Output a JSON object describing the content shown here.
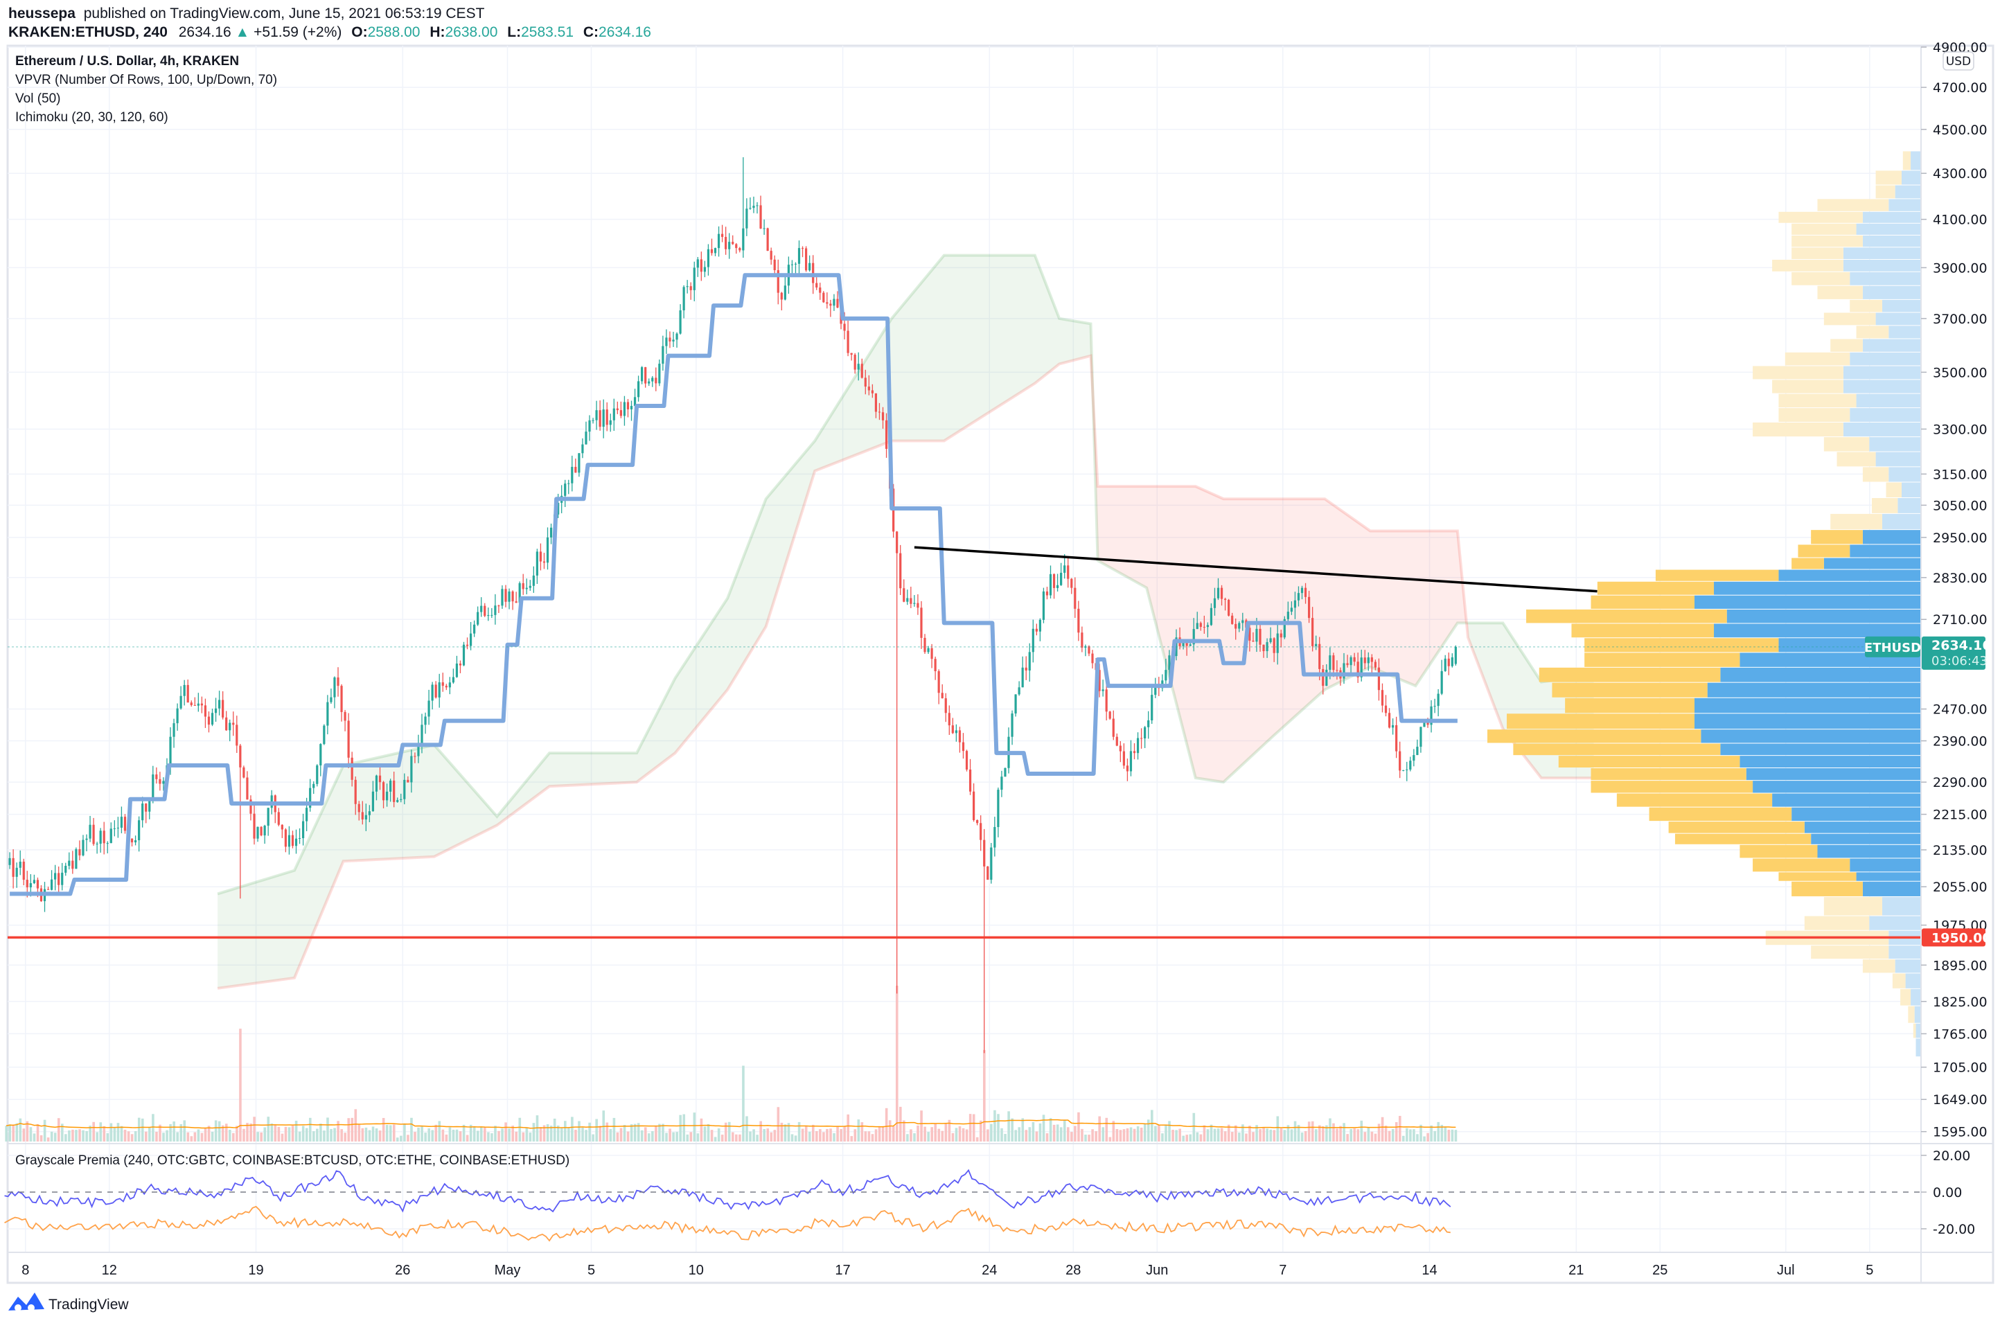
{
  "header": {
    "author": "heussepa",
    "published_text": "published on TradingView.com, June 15, 2021 06:53:19 CEST",
    "symbol_interval": "KRAKEN:ETHUSD, 240",
    "last_price": "2634.16",
    "change": "+51.59 (+2%)",
    "open_label": "O:",
    "open": "2588.00",
    "high_label": "H:",
    "high": "2638.00",
    "low_label": "L:",
    "low": "2583.51",
    "close_label": "C:",
    "close": "2634.16"
  },
  "legend": {
    "title": "Ethereum / U.S. Dollar, 4h, KRAKEN",
    "vpvr": "VPVR (Number Of Rows, 100, Up/Down, 70)",
    "vol": "Vol (50)",
    "ichimoku": "Ichimoku (20, 30, 120, 60)",
    "premia": "Grayscale Premia (240, OTC:GBTC, COINBASE:BTCUSD, OTC:ETHE, COINBASE:ETHUSD)"
  },
  "price_axis": {
    "currency": "USD",
    "scale": "log",
    "ticks": [
      4900,
      4700,
      4500,
      4300,
      4100,
      3900,
      3700,
      3500,
      3300,
      3150,
      3050,
      2950,
      2830,
      2710,
      2470,
      2390,
      2290,
      2215,
      2135,
      2055,
      1975,
      1895,
      1825,
      1765,
      1705,
      1649,
      1595
    ],
    "tick_labels": [
      "4900.00",
      "4700.00",
      "4500.00",
      "4300.00",
      "4100.00",
      "3900.00",
      "3700.00",
      "3500.00",
      "3300.00",
      "3150.00",
      "3050.00",
      "2950.00",
      "2830.00",
      "2710.00",
      "2470.00",
      "2390.00",
      "2290.00",
      "2215.00",
      "2135.00",
      "2055.00",
      "1975.00",
      "1895.00",
      "1825.00",
      "1765.00",
      "1705.00",
      "1649.00",
      "1595.00"
    ],
    "current_symbol": "ETHUSD",
    "current_price": "2634.16",
    "countdown": "03:06:43",
    "alert_price": "1950.00"
  },
  "premia_axis": {
    "ticks": [
      20,
      0,
      -20
    ],
    "tick_labels": [
      "20.00",
      "0.00",
      "-20.00"
    ]
  },
  "time_axis": {
    "labels": [
      "8",
      "12",
      "19",
      "26",
      "May",
      "5",
      "10",
      "17",
      "24",
      "28",
      "Jun",
      "7",
      "14",
      "21",
      "25",
      "Jul",
      "5"
    ],
    "dates": [
      "2021-04-08",
      "2021-04-12",
      "2021-04-19",
      "2021-04-26",
      "2021-05-01",
      "2021-05-05",
      "2021-05-10",
      "2021-05-17",
      "2021-05-24",
      "2021-05-28",
      "2021-06-01",
      "2021-06-07",
      "2021-06-14",
      "2021-06-21",
      "2021-06-25",
      "2021-07-01",
      "2021-07-05"
    ]
  },
  "footer": {
    "brand": "TradingView"
  },
  "colors": {
    "up": "#26a69a",
    "down": "#ef5350",
    "vol_up": "#bfe3dc",
    "vol_down": "#f9c3c3",
    "vol_ma": "#ff9800",
    "kijun": "#7ea8de",
    "cloud_green": "#43a047",
    "cloud_red": "#f44336",
    "vpvr_up": "#5aace9",
    "vpvr_down": "#fdd16a",
    "vpvr_up_light": "#c7e2f7",
    "vpvr_down_light": "#fdeecb",
    "trendline": "#000000",
    "support": "#f44336",
    "premia_gbtc": "#5b5bf5",
    "premia_ethe": "#ffa24a"
  },
  "chart_data": {
    "type": "candlestick",
    "interval": "4h",
    "y_scale": "log",
    "ylim": [
      1595,
      4900
    ],
    "xlim": [
      "2021-04-07",
      "2021-07-08"
    ],
    "grid": true,
    "daily_close": [
      [
        "2021-04-07",
        2070
      ],
      [
        "2021-04-08",
        2050
      ],
      [
        "2021-04-09",
        2100
      ],
      [
        "2021-04-10",
        2160
      ],
      [
        "2021-04-11",
        2150
      ],
      [
        "2021-04-12",
        2160
      ],
      [
        "2021-04-13",
        2250
      ],
      [
        "2021-04-14",
        2400
      ],
      [
        "2021-04-15",
        2480
      ],
      [
        "2021-04-16",
        2460
      ],
      [
        "2021-04-17",
        2430
      ],
      [
        "2021-04-18",
        2160
      ],
      [
        "2021-04-19",
        2220
      ],
      [
        "2021-04-20",
        2160
      ],
      [
        "2021-04-21",
        2330
      ],
      [
        "2021-04-22",
        2530
      ],
      [
        "2021-04-23",
        2220
      ],
      [
        "2021-04-24",
        2290
      ],
      [
        "2021-04-25",
        2250
      ],
      [
        "2021-04-26",
        2430
      ],
      [
        "2021-04-27",
        2530
      ],
      [
        "2021-04-28",
        2640
      ],
      [
        "2021-04-29",
        2720
      ],
      [
        "2021-04-30",
        2760
      ],
      [
        "2021-05-01",
        2800
      ],
      [
        "2021-05-02",
        2950
      ],
      [
        "2021-05-03",
        3120
      ],
      [
        "2021-05-04",
        3330
      ],
      [
        "2021-05-05",
        3330
      ],
      [
        "2021-05-06",
        3380
      ],
      [
        "2021-05-07",
        3480
      ],
      [
        "2021-05-08",
        3620
      ],
      [
        "2021-05-09",
        3900
      ],
      [
        "2021-05-10",
        3980
      ],
      [
        "2021-05-11",
        3980
      ],
      [
        "2021-05-12",
        4160
      ],
      [
        "2021-05-13",
        3800
      ],
      [
        "2021-05-14",
        3980
      ],
      [
        "2021-05-15",
        3800
      ],
      [
        "2021-05-16",
        3680
      ],
      [
        "2021-05-17",
        3480
      ],
      [
        "2021-05-18",
        3330
      ],
      [
        "2021-05-19",
        2760
      ],
      [
        "2021-05-20",
        2620
      ],
      [
        "2021-05-21",
        2460
      ],
      [
        "2021-05-22",
        2320
      ],
      [
        "2021-05-23",
        2070
      ],
      [
        "2021-05-24",
        2400
      ],
      [
        "2021-05-25",
        2620
      ],
      [
        "2021-05-26",
        2840
      ],
      [
        "2021-05-27",
        2800
      ],
      [
        "2021-05-28",
        2590
      ],
      [
        "2021-05-29",
        2400
      ],
      [
        "2021-05-30",
        2360
      ],
      [
        "2021-05-31",
        2530
      ],
      [
        "2021-06-01",
        2660
      ],
      [
        "2021-06-02",
        2700
      ],
      [
        "2021-06-03",
        2800
      ],
      [
        "2021-06-04",
        2700
      ],
      [
        "2021-06-05",
        2640
      ],
      [
        "2021-06-06",
        2660
      ],
      [
        "2021-06-07",
        2800
      ],
      [
        "2021-06-08",
        2530
      ],
      [
        "2021-06-09",
        2590
      ],
      [
        "2021-06-10",
        2590
      ],
      [
        "2021-06-11",
        2460
      ],
      [
        "2021-06-12",
        2320
      ],
      [
        "2021-06-13",
        2430
      ],
      [
        "2021-06-14",
        2582
      ],
      [
        "2021-06-15",
        2634.16
      ]
    ],
    "extremes": [
      {
        "date": "2021-04-18T04:00",
        "low": 2030
      },
      {
        "date": "2021-05-12T04:00",
        "high": 4372
      },
      {
        "date": "2021-05-19T12:00",
        "low": 1840
      },
      {
        "date": "2021-05-23T16:00",
        "low": 1730
      }
    ],
    "ichimoku_base_line": [
      [
        "2021-04-07T06:00",
        2040
      ],
      [
        "2021-04-10T08:00",
        2070
      ],
      [
        "2021-04-13T00:00",
        2250
      ],
      [
        "2021-04-14T20:00",
        2330
      ],
      [
        "2021-04-17T20:00",
        2240
      ],
      [
        "2021-04-22T08:00",
        2330
      ],
      [
        "2021-04-26T00:00",
        2380
      ],
      [
        "2021-04-28T00:00",
        2440
      ],
      [
        "2021-05-01T00:00",
        2640
      ],
      [
        "2021-05-01T16:00",
        2770
      ],
      [
        "2021-05-03T08:00",
        3070
      ],
      [
        "2021-05-04T20:00",
        3180
      ],
      [
        "2021-05-07T04:00",
        3380
      ],
      [
        "2021-05-08T16:00",
        3560
      ],
      [
        "2021-05-10T20:00",
        3750
      ],
      [
        "2021-05-12T08:00",
        3870
      ],
      [
        "2021-05-17T00:00",
        3700
      ],
      [
        "2021-05-19T08:00",
        3040
      ],
      [
        "2021-05-21T20:00",
        2700
      ],
      [
        "2021-05-24T08:00",
        2360
      ],
      [
        "2021-05-25T20:00",
        2310
      ],
      [
        "2021-05-29T04:00",
        2600
      ],
      [
        "2021-05-29T16:00",
        2530
      ],
      [
        "2021-06-01T20:00",
        2650
      ],
      [
        "2021-06-04T04:00",
        2590
      ],
      [
        "2021-06-05T08:00",
        2700
      ],
      [
        "2021-06-08T00:00",
        2560
      ],
      [
        "2021-06-12T16:00",
        2440
      ],
      [
        "2021-06-15T08:00",
        2440
      ]
    ],
    "ichimoku_cloud": [
      [
        "2021-04-17T04:00",
        2040,
        1850
      ],
      [
        "2021-04-20T20:00",
        2090,
        1870
      ],
      [
        "2021-04-23T04:00",
        2330,
        2110
      ],
      [
        "2021-04-27T12:00",
        2380,
        2120
      ],
      [
        "2021-04-30T12:00",
        2210,
        2190
      ],
      [
        "2021-05-03T00:00",
        2360,
        2280
      ],
      [
        "2021-05-07T04:00",
        2360,
        2290
      ],
      [
        "2021-05-09T00:00",
        2550,
        2360
      ],
      [
        "2021-05-11T12:00",
        2770,
        2520
      ],
      [
        "2021-05-13T08:00",
        3070,
        2690
      ],
      [
        "2021-05-15T16:00",
        3260,
        3160
      ],
      [
        "2021-05-19T08:00",
        3700,
        3260
      ],
      [
        "2021-05-21T20:00",
        3950,
        3260
      ],
      [
        "2021-05-26T04:00",
        3950,
        3460
      ],
      [
        "2021-05-27T08:00",
        3700,
        3530
      ],
      [
        "2021-05-28T20:00",
        3680,
        3560
      ],
      [
        "2021-05-29T04:00",
        2880,
        3110
      ],
      [
        "2021-05-31T12:00",
        2800,
        3110
      ],
      [
        "2021-06-02T20:00",
        2300,
        3110
      ],
      [
        "2021-06-04T04:00",
        2290,
        3070
      ],
      [
        "2021-06-06T12:00",
        2400,
        3070
      ],
      [
        "2021-06-09T00:00",
        2520,
        3070
      ],
      [
        "2021-06-11T04:00",
        2580,
        2970
      ],
      [
        "2021-06-13T08:00",
        2530,
        2970
      ],
      [
        "2021-06-15T08:00",
        2700,
        2970
      ],
      [
        "2021-06-15T20:00",
        2700,
        2660
      ],
      [
        "2021-06-17T12:00",
        2700,
        2420
      ],
      [
        "2021-06-19T08:00",
        2540,
        2300
      ],
      [
        "2021-06-21T20:00",
        2560,
        2300
      ]
    ],
    "trendline": [
      [
        "2021-05-20T10:00",
        2920
      ],
      [
        "2021-06-22T00:00",
        2790
      ]
    ],
    "horizontal_line": 1950,
    "vpvr_value_area": [
      2055,
      2955
    ],
    "vpvr_rows": [
      [
        4350,
        8,
        6
      ],
      [
        4280,
        15,
        20
      ],
      [
        4220,
        20,
        15
      ],
      [
        4160,
        25,
        55
      ],
      [
        4110,
        45,
        65
      ],
      [
        4060,
        50,
        50
      ],
      [
        4010,
        45,
        55
      ],
      [
        3960,
        60,
        40
      ],
      [
        3910,
        60,
        55
      ],
      [
        3860,
        55,
        45
      ],
      [
        3800,
        45,
        35
      ],
      [
        3750,
        30,
        25
      ],
      [
        3700,
        35,
        40
      ],
      [
        3650,
        25,
        25
      ],
      [
        3600,
        45,
        25
      ],
      [
        3550,
        55,
        50
      ],
      [
        3500,
        60,
        70
      ],
      [
        3450,
        60,
        55
      ],
      [
        3400,
        50,
        60
      ],
      [
        3350,
        55,
        55
      ],
      [
        3300,
        60,
        70
      ],
      [
        3250,
        40,
        35
      ],
      [
        3200,
        35,
        30
      ],
      [
        3150,
        25,
        20
      ],
      [
        3100,
        15,
        12
      ],
      [
        3050,
        18,
        20
      ],
      [
        3000,
        30,
        40
      ],
      [
        2950,
        45,
        40
      ],
      [
        2910,
        55,
        40
      ],
      [
        2870,
        75,
        25
      ],
      [
        2840,
        110,
        95
      ],
      [
        2800,
        160,
        90
      ],
      [
        2760,
        175,
        80
      ],
      [
        2720,
        150,
        155
      ],
      [
        2680,
        160,
        110
      ],
      [
        2640,
        110,
        150
      ],
      [
        2600,
        140,
        120
      ],
      [
        2560,
        155,
        140
      ],
      [
        2520,
        165,
        120
      ],
      [
        2480,
        175,
        100
      ],
      [
        2440,
        175,
        145
      ],
      [
        2400,
        170,
        165
      ],
      [
        2370,
        155,
        160
      ],
      [
        2340,
        140,
        140
      ],
      [
        2310,
        135,
        120
      ],
      [
        2280,
        130,
        125
      ],
      [
        2250,
        115,
        120
      ],
      [
        2215,
        100,
        110
      ],
      [
        2185,
        90,
        105
      ],
      [
        2160,
        85,
        105
      ],
      [
        2135,
        80,
        60
      ],
      [
        2100,
        55,
        75
      ],
      [
        2075,
        50,
        60
      ],
      [
        2060,
        45,
        55
      ],
      [
        2010,
        30,
        45
      ],
      [
        1980,
        40,
        50
      ],
      [
        1950,
        25,
        95
      ],
      [
        1920,
        25,
        60
      ],
      [
        1895,
        20,
        25
      ],
      [
        1865,
        12,
        10
      ],
      [
        1835,
        8,
        8
      ],
      [
        1800,
        5,
        5
      ],
      [
        1770,
        4,
        2
      ],
      [
        1745,
        4,
        0
      ]
    ],
    "premia": {
      "GBTC": [
        [
          "2021-04-07",
          -1
        ],
        [
          "2021-04-09",
          -5
        ],
        [
          "2021-04-12",
          -6
        ],
        [
          "2021-04-14",
          2
        ],
        [
          "2021-04-17",
          -2
        ],
        [
          "2021-04-19",
          8
        ],
        [
          "2021-04-20",
          -3
        ],
        [
          "2021-04-23",
          10
        ],
        [
          "2021-04-24",
          -2
        ],
        [
          "2021-04-26",
          -8
        ],
        [
          "2021-04-28",
          3
        ],
        [
          "2021-04-30",
          0
        ],
        [
          "2021-05-03",
          -10
        ],
        [
          "2021-05-04",
          -2
        ],
        [
          "2021-05-06",
          -5
        ],
        [
          "2021-05-08",
          2
        ],
        [
          "2021-05-10",
          -2
        ],
        [
          "2021-05-12",
          -8
        ],
        [
          "2021-05-14",
          -6
        ],
        [
          "2021-05-16",
          4
        ],
        [
          "2021-05-17",
          0
        ],
        [
          "2021-05-19",
          8
        ],
        [
          "2021-05-21",
          -2
        ],
        [
          "2021-05-23",
          10
        ],
        [
          "2021-05-25",
          -8
        ],
        [
          "2021-05-28",
          3
        ],
        [
          "2021-06-01",
          -3
        ],
        [
          "2021-06-04",
          0
        ],
        [
          "2021-06-06",
          1
        ],
        [
          "2021-06-08",
          -5
        ],
        [
          "2021-06-11",
          -3
        ],
        [
          "2021-06-13",
          -2
        ],
        [
          "2021-06-15",
          -8
        ]
      ],
      "ETHE": [
        [
          "2021-04-07",
          -15
        ],
        [
          "2021-04-09",
          -19
        ],
        [
          "2021-04-12",
          -20
        ],
        [
          "2021-04-14",
          -17
        ],
        [
          "2021-04-17",
          -18
        ],
        [
          "2021-04-19",
          -10
        ],
        [
          "2021-04-20",
          -17
        ],
        [
          "2021-04-23",
          -16
        ],
        [
          "2021-04-24",
          -18
        ],
        [
          "2021-04-26",
          -23
        ],
        [
          "2021-04-28",
          -17
        ],
        [
          "2021-04-30",
          -19
        ],
        [
          "2021-05-03",
          -26
        ],
        [
          "2021-05-04",
          -22
        ],
        [
          "2021-05-06",
          -20
        ],
        [
          "2021-05-08",
          -18
        ],
        [
          "2021-05-10",
          -20
        ],
        [
          "2021-05-12",
          -24
        ],
        [
          "2021-05-14",
          -22
        ],
        [
          "2021-05-16",
          -16
        ],
        [
          "2021-05-17",
          -18
        ],
        [
          "2021-05-19",
          -12
        ],
        [
          "2021-05-21",
          -20
        ],
        [
          "2021-05-23",
          -10
        ],
        [
          "2021-05-25",
          -22
        ],
        [
          "2021-05-28",
          -17
        ],
        [
          "2021-06-01",
          -20
        ],
        [
          "2021-06-04",
          -18
        ],
        [
          "2021-06-06",
          -17
        ],
        [
          "2021-06-08",
          -22
        ],
        [
          "2021-06-11",
          -20
        ],
        [
          "2021-06-13",
          -19
        ],
        [
          "2021-06-15",
          -22
        ]
      ]
    }
  }
}
